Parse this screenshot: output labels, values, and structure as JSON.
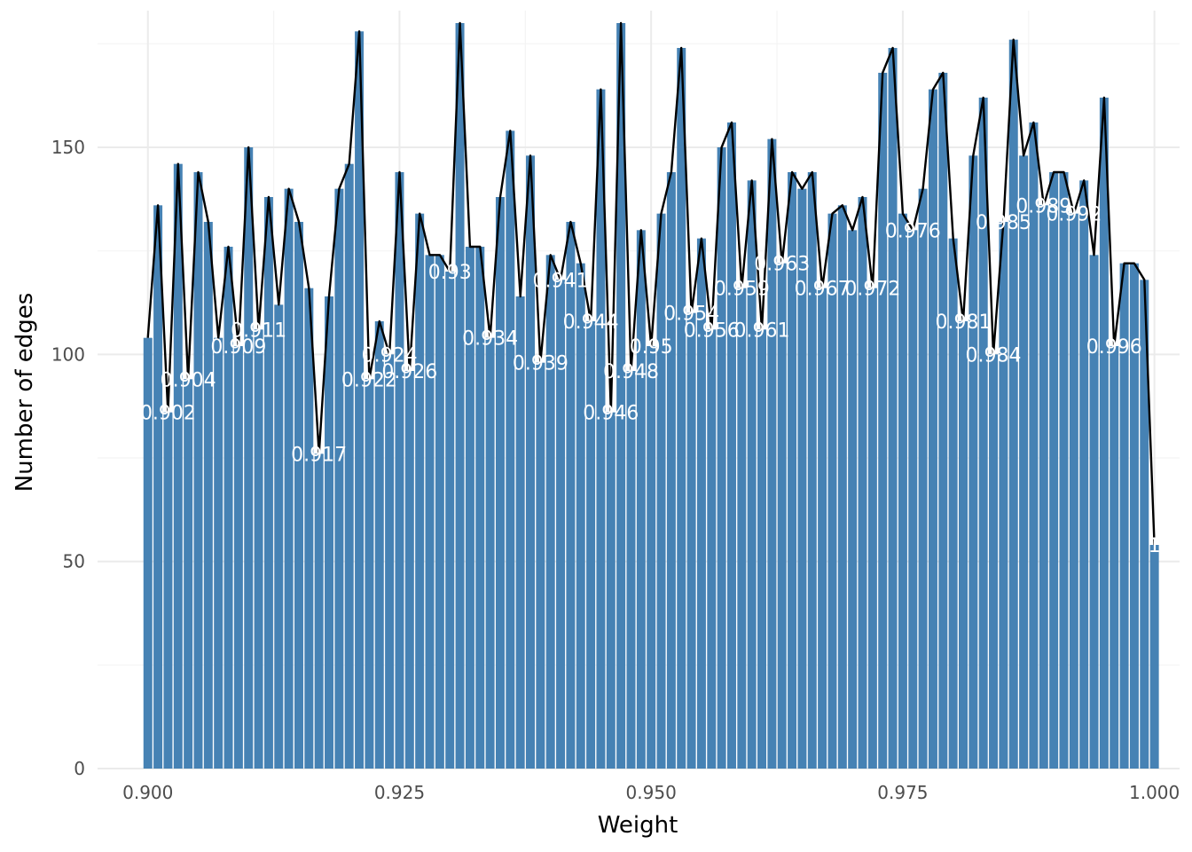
{
  "chart_data": {
    "type": "bar",
    "xlabel": "Weight",
    "ylabel": "Number of edges",
    "xlim": [
      0.895,
      1.0025
    ],
    "ylim": [
      0,
      183
    ],
    "x_ticks": [
      "0.900",
      "0.925",
      "0.950",
      "0.975",
      "1.000"
    ],
    "y_ticks": [
      "0",
      "50",
      "100",
      "150"
    ],
    "grid": true,
    "legend": "none",
    "bar_color": "#4682b4",
    "line_color": "#000000",
    "x": [
      0.9,
      0.901,
      0.902,
      0.903,
      0.904,
      0.905,
      0.906,
      0.907,
      0.908,
      0.909,
      0.91,
      0.911,
      0.912,
      0.913,
      0.914,
      0.915,
      0.916,
      0.917,
      0.918,
      0.919,
      0.92,
      0.921,
      0.922,
      0.923,
      0.924,
      0.925,
      0.926,
      0.927,
      0.928,
      0.929,
      0.93,
      0.931,
      0.932,
      0.933,
      0.934,
      0.935,
      0.936,
      0.937,
      0.938,
      0.939,
      0.94,
      0.941,
      0.942,
      0.943,
      0.944,
      0.945,
      0.946,
      0.947,
      0.948,
      0.949,
      0.95,
      0.951,
      0.952,
      0.953,
      0.954,
      0.955,
      0.956,
      0.957,
      0.958,
      0.959,
      0.96,
      0.961,
      0.962,
      0.963,
      0.964,
      0.965,
      0.966,
      0.967,
      0.968,
      0.969,
      0.97,
      0.971,
      0.972,
      0.973,
      0.974,
      0.975,
      0.976,
      0.977,
      0.978,
      0.979,
      0.98,
      0.981,
      0.982,
      0.983,
      0.984,
      0.985,
      0.986,
      0.987,
      0.988,
      0.989,
      0.99,
      0.991,
      0.992,
      0.993,
      0.994,
      0.995,
      0.996,
      0.997,
      0.998,
      0.999,
      1.0
    ],
    "values": [
      104,
      136,
      86,
      146,
      94,
      144,
      132,
      104,
      126,
      102,
      150,
      106,
      138,
      112,
      140,
      132,
      116,
      76,
      114,
      140,
      146,
      178,
      94,
      108,
      100,
      144,
      96,
      134,
      124,
      124,
      120,
      180,
      126,
      126,
      104,
      138,
      154,
      114,
      148,
      98,
      124,
      118,
      132,
      122,
      108,
      164,
      86,
      180,
      96,
      130,
      102,
      134,
      144,
      174,
      110,
      128,
      106,
      150,
      156,
      116,
      142,
      106,
      152,
      122,
      144,
      140,
      144,
      116,
      134,
      136,
      130,
      138,
      116,
      168,
      174,
      134,
      130,
      140,
      164,
      168,
      128,
      108,
      148,
      162,
      100,
      132,
      176,
      148,
      156,
      136,
      144,
      144,
      134,
      142,
      124,
      162,
      102,
      122,
      122,
      118,
      54
    ],
    "data_labels": [
      {
        "x": 0.902,
        "text": "0.902"
      },
      {
        "x": 0.904,
        "text": "0.904"
      },
      {
        "x": 0.909,
        "text": "0.909"
      },
      {
        "x": 0.911,
        "text": "0.911"
      },
      {
        "x": 0.917,
        "text": "0.917"
      },
      {
        "x": 0.922,
        "text": "0.922"
      },
      {
        "x": 0.924,
        "text": "0.924"
      },
      {
        "x": 0.926,
        "text": "0.926"
      },
      {
        "x": 0.93,
        "text": "0.93"
      },
      {
        "x": 0.934,
        "text": "0.934"
      },
      {
        "x": 0.939,
        "text": "0.939"
      },
      {
        "x": 0.941,
        "text": "0.941"
      },
      {
        "x": 0.944,
        "text": "0.944"
      },
      {
        "x": 0.946,
        "text": "0.946"
      },
      {
        "x": 0.948,
        "text": "0.948"
      },
      {
        "x": 0.95,
        "text": "0.95"
      },
      {
        "x": 0.954,
        "text": "0.954"
      },
      {
        "x": 0.956,
        "text": "0.956"
      },
      {
        "x": 0.959,
        "text": "0.959"
      },
      {
        "x": 0.961,
        "text": "0.961"
      },
      {
        "x": 0.963,
        "text": "0.963"
      },
      {
        "x": 0.967,
        "text": "0.967"
      },
      {
        "x": 0.972,
        "text": "0.972"
      },
      {
        "x": 0.976,
        "text": "0.976"
      },
      {
        "x": 0.981,
        "text": "0.981"
      },
      {
        "x": 0.984,
        "text": "0.984"
      },
      {
        "x": 0.985,
        "text": "0.985"
      },
      {
        "x": 0.989,
        "text": "0.989"
      },
      {
        "x": 0.992,
        "text": "0.992"
      },
      {
        "x": 0.996,
        "text": "0.996"
      },
      {
        "x": 1.0,
        "text": "1"
      }
    ]
  }
}
